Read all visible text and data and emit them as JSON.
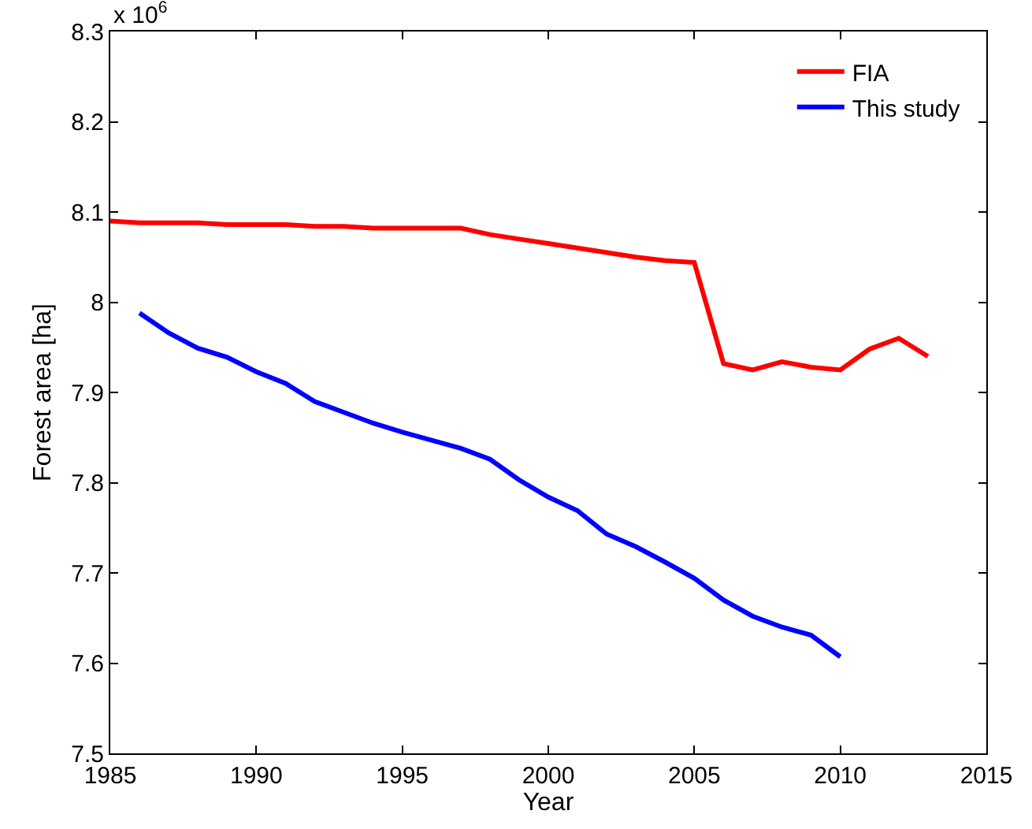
{
  "chart_data": {
    "type": "line",
    "xlabel": "Year",
    "ylabel": "Forest area [ha]",
    "annotations": [
      "x 10$^{6}$"
    ],
    "xlim": [
      1985,
      2015
    ],
    "xticks": [
      1985,
      1990,
      1995,
      2000,
      2005,
      2010,
      2015
    ],
    "ylim": [
      7.5,
      8.3
    ],
    "yticks": [
      7.5,
      7.6,
      7.7,
      7.8,
      7.9,
      {
        "value": 8,
        "label": "8"
      },
      8.1,
      8.2,
      8.3
    ],
    "legend": "top right",
    "marker": "none",
    "line_style": "solid",
    "series": [
      {
        "name": "FIA",
        "color": "#ff0000",
        "x": [
          1985,
          1986,
          1987,
          1988,
          1989,
          1990,
          1991,
          1992,
          1993,
          1994,
          1995,
          1996,
          1997,
          1998,
          1999,
          2000,
          2001,
          2002,
          2003,
          2004,
          2005,
          2006,
          2007,
          2008,
          2009,
          2010,
          2011,
          2012,
          2013
        ],
        "values": [
          8.09,
          8.088,
          8.088,
          8.088,
          8.086,
          8.086,
          8.086,
          8.084,
          8.084,
          8.082,
          8.082,
          8.082,
          8.082,
          8.075,
          8.07,
          8.065,
          8.06,
          8.055,
          8.05,
          8.046,
          8.044,
          7.932,
          7.925,
          7.934,
          7.928,
          7.925,
          7.948,
          7.96,
          7.94
        ]
      },
      {
        "name": "This study",
        "color": "#0000ff",
        "x": [
          1986,
          1987,
          1988,
          1989,
          1990,
          1991,
          1992,
          1993,
          1994,
          1995,
          1996,
          1997,
          1998,
          1999,
          2000,
          2001,
          2002,
          2003,
          2004,
          2005,
          2006,
          2007,
          2008,
          2009,
          2010
        ],
        "values": [
          7.988,
          7.966,
          7.949,
          7.939,
          7.923,
          7.91,
          7.89,
          7.878,
          7.866,
          7.856,
          7.847,
          7.838,
          7.826,
          7.803,
          7.784,
          7.769,
          7.743,
          7.729,
          7.712,
          7.694,
          7.67,
          7.652,
          7.64,
          7.631,
          7.607
        ]
      }
    ]
  }
}
